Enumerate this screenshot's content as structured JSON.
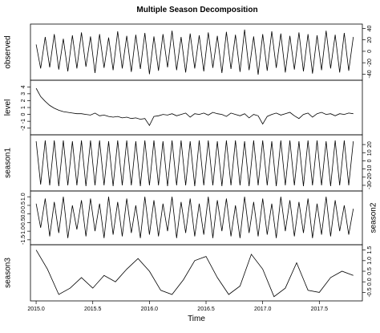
{
  "chart_data": {
    "type": "line",
    "title": "Multiple Season Decomposition",
    "x_label": "Time",
    "color": "#000000",
    "xlim": [
      2014.95,
      2017.88
    ],
    "xticks": [
      {
        "value": 2015,
        "label": "2015.0"
      },
      2015.5,
      {
        "value": 2016,
        "label": "2016.0"
      },
      2016.5,
      {
        "value": 2017,
        "label": "2017.0"
      },
      2017.5
    ],
    "panels": [
      {
        "name": "observed",
        "ylim": [
          -45,
          42
        ],
        "yticks": [
          -40,
          -20,
          0,
          20,
          40
        ],
        "x": [
          2015,
          2015.04,
          2015.08,
          2015.12,
          2015.16,
          2015.2,
          2015.24,
          2015.28,
          2015.32,
          2015.36,
          2015.4,
          2015.44,
          2015.48,
          2015.52,
          2015.56,
          2015.6,
          2015.64,
          2015.68,
          2015.72,
          2015.76,
          2015.8,
          2015.84,
          2015.88,
          2015.92,
          2015.96,
          2016,
          2016.04,
          2016.08,
          2016.12,
          2016.16,
          2016.2,
          2016.24,
          2016.28,
          2016.32,
          2016.36,
          2016.4,
          2016.44,
          2016.48,
          2016.52,
          2016.56,
          2016.6,
          2016.64,
          2016.68,
          2016.72,
          2016.76,
          2016.8,
          2016.84,
          2016.88,
          2016.92,
          2016.96,
          2017,
          2017.04,
          2017.08,
          2017.12,
          2017.16,
          2017.2,
          2017.24,
          2017.28,
          2017.32,
          2017.36,
          2017.4,
          2017.44,
          2017.48,
          2017.52,
          2017.56,
          2017.6,
          2017.64,
          2017.68,
          2017.72,
          2017.76,
          2017.8
        ],
        "values": [
          12,
          -30,
          25,
          -28,
          30,
          -32,
          22,
          -35,
          28,
          -30,
          33,
          -27,
          26,
          -38,
          30,
          -29,
          24,
          -33,
          35,
          -30,
          27,
          -36,
          29,
          -31,
          32,
          -40,
          26,
          -34,
          30,
          -28,
          36,
          -33,
          25,
          -37,
          31,
          -30,
          28,
          -35,
          33,
          -29,
          27,
          -38,
          34,
          -31,
          29,
          -36,
          38,
          -33,
          26,
          -41,
          30,
          -34,
          35,
          -29,
          31,
          -37,
          27,
          -32,
          33,
          -35,
          30,
          -39,
          28,
          -33,
          36,
          -30,
          29,
          -37,
          32,
          -34,
          25
        ]
      },
      {
        "name": "level",
        "ylim": [
          -2.5,
          4.5
        ],
        "yticks": [
          -2,
          -1,
          0,
          1,
          2,
          3,
          4
        ],
        "x": [
          2015,
          2015.04,
          2015.08,
          2015.12,
          2015.16,
          2015.2,
          2015.24,
          2015.28,
          2015.32,
          2015.36,
          2015.4,
          2015.44,
          2015.48,
          2015.52,
          2015.56,
          2015.6,
          2015.64,
          2015.68,
          2015.72,
          2015.76,
          2015.8,
          2015.84,
          2015.88,
          2015.92,
          2015.96,
          2016,
          2016.04,
          2016.08,
          2016.12,
          2016.16,
          2016.2,
          2016.24,
          2016.28,
          2016.32,
          2016.36,
          2016.4,
          2016.44,
          2016.48,
          2016.52,
          2016.56,
          2016.6,
          2016.64,
          2016.68,
          2016.72,
          2016.76,
          2016.8,
          2016.84,
          2016.88,
          2016.92,
          2016.96,
          2017,
          2017.04,
          2017.08,
          2017.12,
          2017.16,
          2017.2,
          2017.24,
          2017.28,
          2017.32,
          2017.36,
          2017.4,
          2017.44,
          2017.48,
          2017.52,
          2017.56,
          2017.6,
          2017.64,
          2017.68,
          2017.72,
          2017.76,
          2017.8
        ],
        "values": [
          3.8,
          2.6,
          1.9,
          1.3,
          0.9,
          0.6,
          0.4,
          0.3,
          0.2,
          0.1,
          0.1,
          0.0,
          -0.1,
          0.2,
          -0.2,
          -0.1,
          -0.3,
          -0.4,
          -0.3,
          -0.5,
          -0.4,
          -0.6,
          -0.5,
          -0.7,
          -0.6,
          -1.6,
          -0.3,
          -0.2,
          0.0,
          -0.1,
          0.1,
          -0.2,
          0.0,
          0.2,
          -0.4,
          0.1,
          0.0,
          0.2,
          -0.1,
          0.3,
          0.1,
          0.0,
          -0.3,
          0.2,
          0.0,
          -0.2,
          0.1,
          -0.5,
          0.0,
          -0.2,
          -1.4,
          -0.3,
          0.0,
          0.2,
          -0.1,
          0.1,
          0.3,
          -0.2,
          -0.6,
          0.0,
          0.2,
          -0.4,
          0.1,
          0.3,
          0.0,
          0.1,
          -0.2,
          0.1,
          0.0,
          0.2,
          0.1
        ]
      },
      {
        "name": "season1",
        "ylim": [
          -33,
          28
        ],
        "yticks": [
          -30,
          -20,
          -10,
          0,
          10,
          20
        ],
        "x": [
          2015,
          2015.04,
          2015.08,
          2015.12,
          2015.16,
          2015.2,
          2015.24,
          2015.28,
          2015.32,
          2015.36,
          2015.4,
          2015.44,
          2015.48,
          2015.52,
          2015.56,
          2015.6,
          2015.64,
          2015.68,
          2015.72,
          2015.76,
          2015.8,
          2015.84,
          2015.88,
          2015.92,
          2015.96,
          2016,
          2016.04,
          2016.08,
          2016.12,
          2016.16,
          2016.2,
          2016.24,
          2016.28,
          2016.32,
          2016.36,
          2016.4,
          2016.44,
          2016.48,
          2016.52,
          2016.56,
          2016.6,
          2016.64,
          2016.68,
          2016.72,
          2016.76,
          2016.8,
          2016.84,
          2016.88,
          2016.92,
          2016.96,
          2017,
          2017.04,
          2017.08,
          2017.12,
          2017.16,
          2017.2,
          2017.24,
          2017.28,
          2017.32,
          2017.36,
          2017.4,
          2017.44,
          2017.48,
          2017.52,
          2017.56,
          2017.6,
          2017.64,
          2017.68,
          2017.72,
          2017.76,
          2017.8
        ],
        "values": [
          24,
          -29,
          25,
          -30,
          25,
          -31,
          25,
          -30,
          24,
          -30,
          25,
          -31,
          25,
          -30,
          25,
          -30,
          24,
          -31,
          25,
          -30,
          25,
          -30,
          24,
          -31,
          25,
          -30,
          25,
          -30,
          24,
          -31,
          25,
          -30,
          25,
          -30,
          24,
          -31,
          25,
          -30,
          25,
          -30,
          24,
          -31,
          25,
          -30,
          25,
          -30,
          24,
          -31,
          25,
          -30,
          25,
          -30,
          24,
          -31,
          25,
          -30,
          25,
          -30,
          24,
          -31,
          25,
          -30,
          25,
          -30,
          24,
          -31,
          25,
          -30,
          25,
          -30,
          24
        ]
      },
      {
        "name": "season2",
        "ylim": [
          -1.6,
          1.15
        ],
        "yticks": [
          -1.5,
          {
            "value": -1,
            "label": "-1.0"
          },
          -0.5,
          {
            "value": 0,
            "label": "0.0"
          },
          0.5,
          {
            "value": 1,
            "label": "1.0"
          }
        ],
        "x": [
          2015,
          2015.04,
          2015.08,
          2015.12,
          2015.16,
          2015.2,
          2015.24,
          2015.28,
          2015.32,
          2015.36,
          2015.4,
          2015.44,
          2015.48,
          2015.52,
          2015.56,
          2015.6,
          2015.64,
          2015.68,
          2015.72,
          2015.76,
          2015.8,
          2015.84,
          2015.88,
          2015.92,
          2015.96,
          2016,
          2016.04,
          2016.08,
          2016.12,
          2016.16,
          2016.2,
          2016.24,
          2016.28,
          2016.32,
          2016.36,
          2016.4,
          2016.44,
          2016.48,
          2016.52,
          2016.56,
          2016.6,
          2016.64,
          2016.68,
          2016.72,
          2016.76,
          2016.8,
          2016.84,
          2016.88,
          2016.92,
          2016.96,
          2017,
          2017.04,
          2017.08,
          2017.12,
          2017.16,
          2017.2,
          2017.24,
          2017.28,
          2017.32,
          2017.36,
          2017.4,
          2017.44,
          2017.48,
          2017.52,
          2017.56,
          2017.6,
          2017.64,
          2017.68,
          2017.72,
          2017.76,
          2017.8
        ],
        "values": [
          0.6,
          -0.8,
          0.9,
          -1.3,
          0.7,
          -1.1,
          1.0,
          -1.4,
          0.5,
          -0.9,
          0.8,
          -1.3,
          0.9,
          -1.0,
          0.6,
          -1.4,
          1.0,
          -1.2,
          0.7,
          -1.3,
          0.9,
          -1.1,
          0.5,
          -1.4,
          1.0,
          -1.2,
          0.8,
          -1.3,
          0.6,
          -1.0,
          1.0,
          -1.4,
          0.7,
          -1.1,
          0.9,
          -1.3,
          0.6,
          -1.2,
          1.0,
          -1.4,
          0.8,
          -1.0,
          0.9,
          -1.3,
          0.5,
          -1.4,
          1.0,
          -1.1,
          0.7,
          -1.3,
          0.9,
          -1.2,
          0.6,
          -1.4,
          1.0,
          -1.0,
          0.8,
          -1.3,
          0.7,
          -1.1,
          0.9,
          -1.4,
          0.6,
          -1.2,
          1.0,
          -1.3,
          0.8,
          -1.0,
          0.5,
          -1.2,
          0.3
        ]
      },
      {
        "name": "season3",
        "ylim": [
          -0.75,
          1.6
        ],
        "yticks": [
          -0.5,
          {
            "value": 0,
            "label": "0.0"
          },
          0.5,
          {
            "value": 1,
            "label": "1.0"
          },
          1.5
        ],
        "x": [
          2015,
          2015.1,
          2015.2,
          2015.3,
          2015.4,
          2015.5,
          2015.6,
          2015.7,
          2015.8,
          2015.9,
          2016,
          2016.1,
          2016.2,
          2016.3,
          2016.4,
          2016.5,
          2016.6,
          2016.7,
          2016.8,
          2016.9,
          2017,
          2017.1,
          2017.2,
          2017.3,
          2017.4,
          2017.5,
          2017.6,
          2017.7,
          2017.8
        ],
        "values": [
          1.5,
          0.6,
          -0.6,
          -0.3,
          0.2,
          -0.3,
          0.3,
          0.0,
          0.6,
          1.1,
          0.5,
          -0.4,
          -0.6,
          0.1,
          1.0,
          1.2,
          0.2,
          -0.6,
          -0.2,
          1.3,
          0.6,
          -0.7,
          -0.3,
          0.9,
          -0.4,
          -0.5,
          0.2,
          0.5,
          0.3
        ]
      }
    ]
  }
}
